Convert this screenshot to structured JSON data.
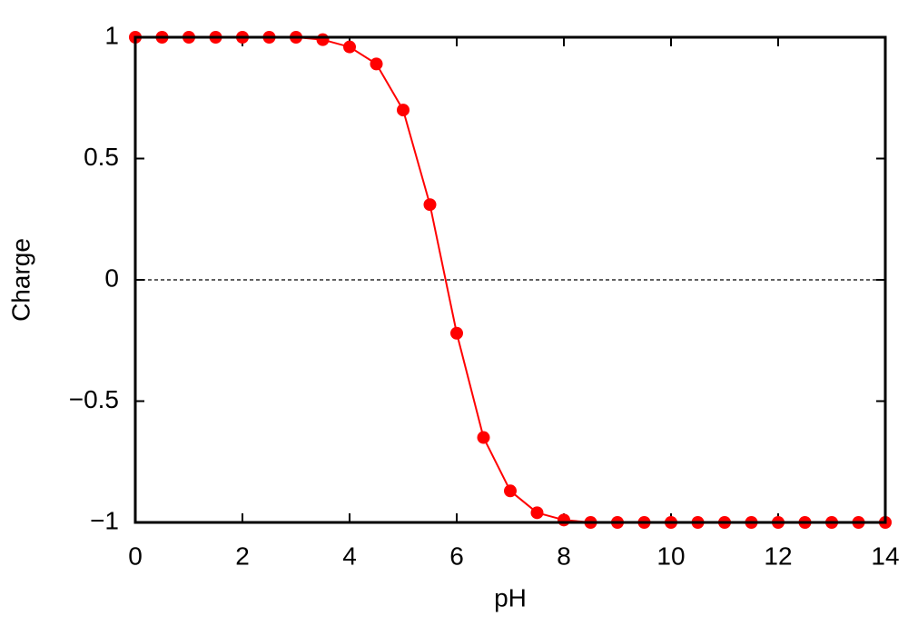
{
  "chart_data": {
    "type": "line",
    "x_label": "pH",
    "y_label": "Charge",
    "x": [
      0,
      0.5,
      1,
      1.5,
      2,
      2.5,
      3,
      3.5,
      4,
      4.5,
      5,
      5.5,
      6,
      6.5,
      7,
      7.5,
      8,
      8.5,
      9,
      9.5,
      10,
      10.5,
      11,
      11.5,
      12,
      12.5,
      13,
      13.5,
      14
    ],
    "values": [
      1,
      1,
      1,
      1,
      1,
      1,
      1,
      0.99,
      0.96,
      0.89,
      0.7,
      0.31,
      -0.22,
      -0.65,
      -0.87,
      -0.96,
      -0.99,
      -1,
      -1,
      -1,
      -1,
      -1,
      -1,
      -1,
      -1,
      -1,
      -1,
      -1,
      -1
    ],
    "color": "#ff0000",
    "markers": true,
    "zero_line": true,
    "xlim": [
      0,
      14
    ],
    "xticks": [
      0,
      2,
      4,
      6,
      8,
      10,
      12,
      14
    ],
    "ylim": [
      -1,
      1
    ],
    "yticks": [
      {
        "value": -1,
        "label": "−1"
      },
      {
        "value": -0.5,
        "label": "−0.5"
      },
      0,
      0.5,
      1
    ],
    "grid": false
  }
}
